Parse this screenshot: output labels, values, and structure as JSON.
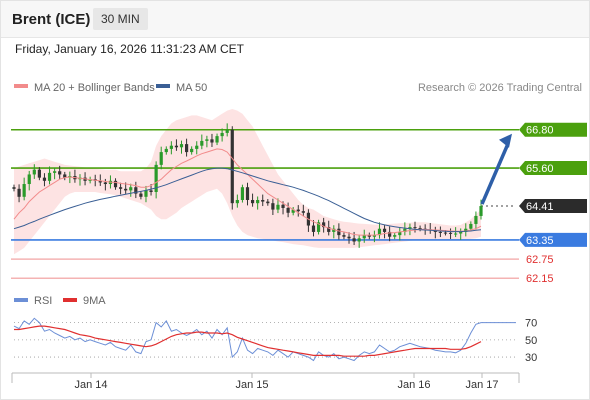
{
  "header": {
    "title": "Brent (ICE)",
    "timeframe": "30 MIN"
  },
  "timestamp": "Friday, January 16, 2026 11:31:23 AM CET",
  "colors": {
    "ma20": "#f28b8b",
    "ma50": "#3a5f95",
    "band_fill": "#fde3e3",
    "candle_up": "#2a9a2a",
    "candle_down": "#333333",
    "resistance": "#4ba00e",
    "support": "#3a7be0",
    "target_support": "#e03030",
    "arrow": "#2e5fa8",
    "rsi": "#6c8fd6",
    "rsi_ma": "#e03030"
  },
  "legend": {
    "ma20_label": "MA 20 + Bollinger Bands",
    "ma50_label": "MA 50"
  },
  "copyright": "Research © 2026 Trading Central",
  "rsi_legend": {
    "rsi_label": "RSI",
    "ma_label": "9MA"
  },
  "chart_data": [
    {
      "type": "candlestick",
      "ylim": [
        61.75,
        67.7
      ],
      "x_labels": [
        "Jan 14",
        "Jan 15",
        "Jan 16",
        "Jan 17"
      ],
      "levels": [
        {
          "value": 66.8,
          "label": "66.80",
          "kind": "resistance"
        },
        {
          "value": 65.6,
          "label": "65.60",
          "kind": "resistance"
        },
        {
          "value": 64.41,
          "label": "64.41",
          "kind": "last"
        },
        {
          "value": 63.35,
          "label": "63.35",
          "kind": "support"
        },
        {
          "value": 62.75,
          "label": "62.75",
          "kind": "target_support"
        },
        {
          "value": 62.15,
          "label": "62.15",
          "kind": "target_support"
        }
      ],
      "series": {
        "close": [
          64.95,
          64.7,
          65.1,
          65.4,
          65.55,
          65.3,
          65.2,
          65.45,
          65.5,
          65.4,
          65.3,
          65.35,
          65.25,
          65.3,
          65.2,
          65.25,
          65.2,
          65.15,
          65.1,
          65.2,
          65.0,
          64.95,
          64.9,
          65.0,
          64.8,
          64.7,
          64.9,
          64.85,
          65.7,
          66.1,
          66.2,
          66.3,
          66.25,
          66.35,
          66.1,
          66.2,
          66.3,
          66.45,
          66.5,
          66.4,
          66.6,
          66.7,
          66.8,
          64.5,
          64.6,
          65.0,
          64.6,
          64.5,
          64.6,
          64.55,
          64.5,
          64.3,
          64.45,
          64.35,
          64.2,
          64.3,
          64.25,
          64.2,
          63.8,
          63.6,
          63.9,
          63.75,
          63.6,
          63.7,
          63.5,
          63.45,
          63.4,
          63.3,
          63.4,
          63.5,
          63.45,
          63.5,
          63.7,
          63.6,
          63.45,
          63.5,
          63.6,
          63.7,
          63.75,
          63.72,
          63.7,
          63.68,
          63.65,
          63.6,
          63.58,
          63.57,
          63.55,
          63.55,
          63.6,
          63.7,
          63.85,
          64.1,
          64.41
        ],
        "ma20": [
          64.0,
          64.2,
          64.35,
          64.55,
          64.7,
          64.85,
          64.95,
          65.05,
          65.15,
          65.25,
          65.3,
          65.32,
          65.3,
          65.28,
          65.26,
          65.24,
          65.22,
          65.2,
          65.18,
          65.16,
          65.15,
          65.12,
          65.1,
          65.08,
          65.05,
          65.0,
          65.0,
          65.05,
          65.15,
          65.25,
          65.4,
          65.55,
          65.65,
          65.75,
          65.82,
          65.9,
          65.98,
          66.05,
          66.1,
          66.15,
          66.2,
          66.18,
          66.1,
          65.9,
          65.7,
          65.55,
          65.4,
          65.25,
          65.1,
          64.95,
          64.8,
          64.7,
          64.6,
          64.5,
          64.4,
          64.3,
          64.2,
          64.1,
          64.0,
          63.92,
          63.85,
          63.78,
          63.72,
          63.67,
          63.63,
          63.6,
          63.56,
          63.52,
          63.5,
          63.5,
          63.5,
          63.5,
          63.52,
          63.55,
          63.57,
          63.58,
          63.6,
          63.62,
          63.64,
          63.66,
          63.68,
          63.68,
          63.67,
          63.66,
          63.65,
          63.64,
          63.63,
          63.62,
          63.62,
          63.63,
          63.66,
          63.7,
          63.78
        ],
        "ma50": [
          63.7,
          63.75,
          63.8,
          63.87,
          63.93,
          64.0,
          64.06,
          64.12,
          64.18,
          64.24,
          64.3,
          64.35,
          64.4,
          64.45,
          64.5,
          64.54,
          64.58,
          64.62,
          64.65,
          64.68,
          64.72,
          64.75,
          64.78,
          64.81,
          64.84,
          64.87,
          64.9,
          64.94,
          64.98,
          65.03,
          65.08,
          65.14,
          65.2,
          65.26,
          65.32,
          65.38,
          65.44,
          65.5,
          65.55,
          65.58,
          65.6,
          65.6,
          65.58,
          65.54,
          65.5,
          65.45,
          65.4,
          65.35,
          65.3,
          65.25,
          65.2,
          65.16,
          65.12,
          65.08,
          65.04,
          65.0,
          64.95,
          64.9,
          64.84,
          64.78,
          64.72,
          64.65,
          64.58,
          64.5,
          64.42,
          64.34,
          64.26,
          64.18,
          64.1,
          64.02,
          63.96,
          63.9,
          63.86,
          63.82,
          63.79,
          63.76,
          63.74,
          63.72,
          63.7,
          63.68,
          63.67,
          63.66,
          63.65,
          63.64,
          63.63,
          63.62,
          63.61,
          63.61,
          63.61,
          63.62,
          63.63,
          63.65,
          63.67
        ],
        "band_upper": [
          65.6,
          65.65,
          65.7,
          65.75,
          65.8,
          65.85,
          65.9,
          65.85,
          65.8,
          65.75,
          65.7,
          65.68,
          65.66,
          65.64,
          65.62,
          65.6,
          65.58,
          65.56,
          65.55,
          65.55,
          65.55,
          65.5,
          65.5,
          65.5,
          65.5,
          65.5,
          65.6,
          65.8,
          66.3,
          66.6,
          66.8,
          67.0,
          67.1,
          67.15,
          67.2,
          67.25,
          67.25,
          67.2,
          67.15,
          67.1,
          67.2,
          67.3,
          67.4,
          67.45,
          67.4,
          67.3,
          67.1,
          66.9,
          66.6,
          66.3,
          66.0,
          65.7,
          65.4,
          65.2,
          65.0,
          64.8,
          64.6,
          64.45,
          64.35,
          64.3,
          64.2,
          64.1,
          64.05,
          64.0,
          63.95,
          63.92,
          63.9,
          63.88,
          63.86,
          63.85,
          63.84,
          63.83,
          63.83,
          63.84,
          63.85,
          63.86,
          63.87,
          63.88,
          63.89,
          63.9,
          63.9,
          63.9,
          63.88,
          63.86,
          63.84,
          63.82,
          63.8,
          63.8,
          63.82,
          63.9,
          64.0,
          64.15,
          64.3
        ],
        "band_lower": [
          62.9,
          63.0,
          63.1,
          63.3,
          63.5,
          63.7,
          63.9,
          64.1,
          64.3,
          64.5,
          64.7,
          64.8,
          64.85,
          64.85,
          64.85,
          64.85,
          64.85,
          64.82,
          64.8,
          64.78,
          64.75,
          64.7,
          64.65,
          64.6,
          64.55,
          64.5,
          64.4,
          64.3,
          64.1,
          64.0,
          64.0,
          64.1,
          64.2,
          64.35,
          64.45,
          64.55,
          64.65,
          64.75,
          64.85,
          64.9,
          64.95,
          64.8,
          64.5,
          64.1,
          63.8,
          63.6,
          63.5,
          63.45,
          63.4,
          63.38,
          63.35,
          63.33,
          63.3,
          63.28,
          63.25,
          63.22,
          63.2,
          63.18,
          63.15,
          63.12,
          63.1,
          63.1,
          63.1,
          63.1,
          63.1,
          63.1,
          63.1,
          63.1,
          63.12,
          63.14,
          63.16,
          63.18,
          63.2,
          63.22,
          63.24,
          63.26,
          63.28,
          63.3,
          63.32,
          63.34,
          63.35,
          63.35,
          63.35,
          63.35,
          63.35,
          63.35,
          63.35,
          63.35,
          63.35,
          63.36,
          63.38,
          63.4,
          63.45
        ]
      }
    },
    {
      "type": "line",
      "ylim": [
        15,
        80
      ],
      "y_ticks": [
        70,
        50,
        30
      ],
      "series": [
        {
          "name": "RSI",
          "values": [
            66,
            63,
            72,
            68,
            75,
            70,
            60,
            62,
            58,
            55,
            52,
            54,
            50,
            52,
            48,
            50,
            48,
            46,
            44,
            47,
            42,
            40,
            38,
            44,
            36,
            34,
            48,
            50,
            70,
            65,
            72,
            60,
            62,
            58,
            55,
            58,
            62,
            56,
            60,
            52,
            62,
            56,
            64,
            30,
            36,
            52,
            38,
            34,
            40,
            38,
            36,
            32,
            38,
            34,
            30,
            36,
            34,
            32,
            30,
            26,
            36,
            32,
            30,
            34,
            28,
            30,
            28,
            26,
            32,
            36,
            34,
            36,
            44,
            40,
            36,
            38,
            42,
            44,
            46,
            44,
            42,
            41,
            40,
            38,
            37,
            36,
            36,
            35,
            38,
            46,
            58,
            68,
            70
          ]
        },
        {
          "name": "9MA",
          "values": [
            62,
            62,
            63,
            64,
            65,
            66,
            66,
            65,
            64,
            63,
            62,
            60,
            58,
            56,
            55,
            54,
            52,
            51,
            50,
            49,
            48,
            47,
            46,
            45,
            44,
            43,
            42,
            43,
            45,
            48,
            51,
            54,
            56,
            57,
            58,
            58,
            59,
            59,
            58,
            58,
            58,
            57,
            58,
            56,
            53,
            51,
            49,
            47,
            45,
            43,
            41,
            40,
            39,
            38,
            37,
            36,
            35,
            34,
            33,
            32,
            32,
            32,
            32,
            32,
            32,
            31,
            31,
            31,
            31,
            31,
            32,
            32,
            33,
            34,
            35,
            36,
            37,
            38,
            39,
            40,
            40,
            40,
            40,
            40,
            40,
            40,
            39,
            39,
            39,
            40,
            42,
            45,
            48
          ]
        }
      ]
    }
  ]
}
